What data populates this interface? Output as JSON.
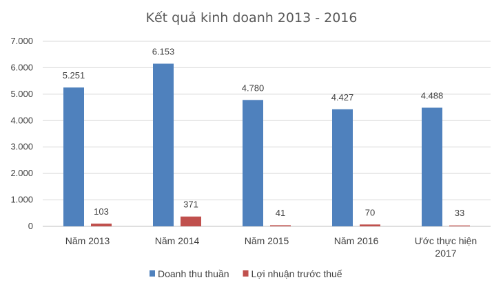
{
  "chart_data": {
    "type": "bar",
    "title": "Kết quả kinh doanh 2013 - 2016",
    "categories": [
      [
        "Năm 2013"
      ],
      [
        "Năm 2014"
      ],
      [
        "Năm 2015"
      ],
      [
        "Năm 2016"
      ],
      [
        "Ước thực hiện",
        "2017"
      ]
    ],
    "series": [
      {
        "name": "Doanh thu thuần",
        "color": "#4f81bd",
        "values": [
          5251,
          6153,
          4780,
          4427,
          4488
        ],
        "labels": [
          "5.251",
          "6.153",
          "4.780",
          "4.427",
          "4.488"
        ]
      },
      {
        "name": "Lợi nhuận trước thuế",
        "color": "#c0504d",
        "values": [
          103,
          371,
          41,
          70,
          33
        ],
        "labels": [
          "103",
          "371",
          "41",
          "70",
          "33"
        ]
      }
    ],
    "yticks": [
      0,
      1000,
      2000,
      3000,
      4000,
      5000,
      6000,
      7000
    ],
    "ytick_labels": [
      "0",
      "1.000",
      "2.000",
      "3.000",
      "4.000",
      "5.000",
      "6.000",
      "7.000"
    ],
    "ylim": [
      0,
      7000
    ],
    "xlabel": "",
    "ylabel": "",
    "grid": true,
    "legend": "bottom"
  }
}
